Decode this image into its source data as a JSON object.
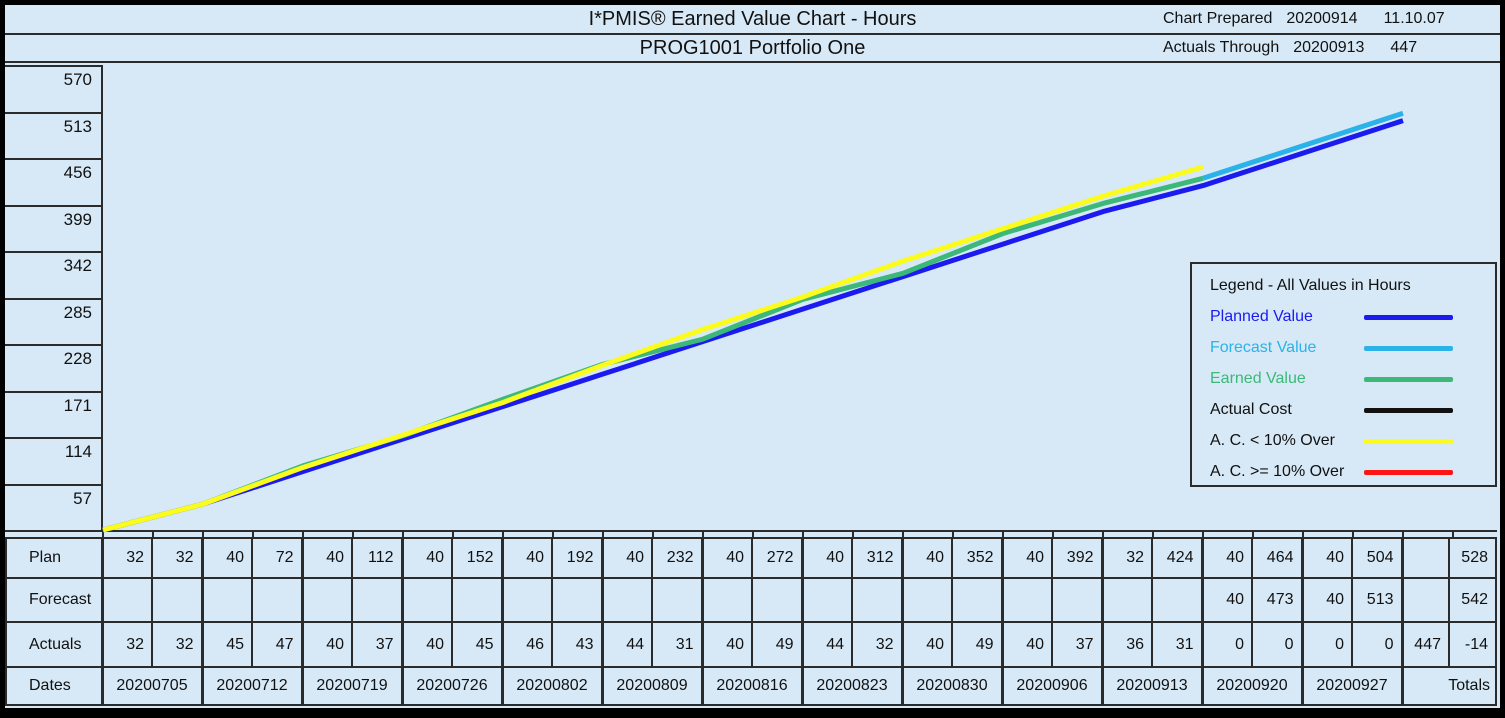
{
  "header": {
    "title": "I*PMIS® Earned Value Chart - Hours",
    "prepared_label": "Chart Prepared",
    "prepared_date": "20200914",
    "prepared_time": "11.10.07",
    "subtitle": "PROG1001 Portfolio One",
    "actuals_label": "Actuals Through",
    "actuals_date": "20200913",
    "actuals_value": "447"
  },
  "y_axis_labels": [
    "570",
    "513",
    "456",
    "399",
    "342",
    "285",
    "228",
    "171",
    "114",
    "57"
  ],
  "legend": {
    "title": "Legend - All Values in Hours",
    "items": [
      {
        "name": "planned-value",
        "label": "Planned Value",
        "label_color": "#1b1bf0",
        "line_color": "#1b1bf0"
      },
      {
        "name": "forecast-value",
        "label": "Forecast Value",
        "label_color": "#2ab2e9",
        "line_color": "#2ab2e9"
      },
      {
        "name": "earned-value",
        "label": "Earned Value",
        "label_color": "#3cb878",
        "line_color": "#3cb878"
      },
      {
        "name": "actual-cost",
        "label": "Actual Cost",
        "label_color": "#111111",
        "line_color": "#111111"
      },
      {
        "name": "ac-under-10",
        "label": "A. C. < 10% Over",
        "label_color": "#111111",
        "line_color": "#fbfb1d"
      },
      {
        "name": "ac-over-10",
        "label": "A. C. >= 10% Over",
        "label_color": "#111111",
        "line_color": "#fe1414"
      }
    ]
  },
  "table": {
    "row_labels": {
      "plan": "Plan",
      "forecast": "Forecast",
      "actuals": "Actuals",
      "dates": "Dates"
    },
    "dates": [
      "20200705",
      "20200712",
      "20200719",
      "20200726",
      "20200802",
      "20200809",
      "20200816",
      "20200823",
      "20200830",
      "20200906",
      "20200913",
      "20200920",
      "20200927"
    ],
    "totals_label": "Totals",
    "plan_cells": [
      [
        "32",
        "32"
      ],
      [
        "40",
        "72"
      ],
      [
        "40",
        "112"
      ],
      [
        "40",
        "152"
      ],
      [
        "40",
        "192"
      ],
      [
        "40",
        "232"
      ],
      [
        "40",
        "272"
      ],
      [
        "40",
        "312"
      ],
      [
        "40",
        "352"
      ],
      [
        "40",
        "392"
      ],
      [
        "32",
        "424"
      ],
      [
        "40",
        "464"
      ],
      [
        "40",
        "504"
      ]
    ],
    "plan_totals": [
      "",
      "528"
    ],
    "forecast_cells": [
      [
        "",
        ""
      ],
      [
        "",
        ""
      ],
      [
        "",
        ""
      ],
      [
        "",
        ""
      ],
      [
        "",
        ""
      ],
      [
        "",
        ""
      ],
      [
        "",
        ""
      ],
      [
        "",
        ""
      ],
      [
        "",
        ""
      ],
      [
        "",
        ""
      ],
      [
        "",
        ""
      ],
      [
        "40",
        "473"
      ],
      [
        "40",
        "513"
      ]
    ],
    "forecast_totals": [
      "",
      "542"
    ],
    "actuals_cells": [
      [
        "32",
        "32"
      ],
      [
        "45",
        "47"
      ],
      [
        "40",
        "37"
      ],
      [
        "40",
        "45"
      ],
      [
        "46",
        "43"
      ],
      [
        "44",
        "31"
      ],
      [
        "40",
        "49"
      ],
      [
        "44",
        "32"
      ],
      [
        "40",
        "49"
      ],
      [
        "40",
        "37"
      ],
      [
        "36",
        "31"
      ],
      [
        "0",
        "0"
      ],
      [
        "0",
        "0"
      ]
    ],
    "actuals_totals": [
      "447",
      "-14"
    ]
  },
  "chart_data": {
    "type": "line",
    "title": "I*PMIS® Earned Value Chart - Hours",
    "subtitle": "PROG1001 Portfolio One",
    "ylabel": "Hours",
    "ylim": [
      0,
      570
    ],
    "y_ticks": [
      57,
      114,
      171,
      228,
      285,
      342,
      399,
      456,
      513,
      570
    ],
    "x_categories": [
      "start",
      "20200705",
      "20200712",
      "20200719",
      "20200726",
      "20200802",
      "20200809",
      "20200816",
      "20200823",
      "20200830",
      "20200906",
      "20200913",
      "20200920",
      "20200927"
    ],
    "grid": false,
    "legend_position": "middle-right box",
    "series": [
      {
        "name": "Planned Value",
        "color": "#1b1bf0",
        "start_index": 0,
        "values": [
          0,
          32,
          72,
          112,
          152,
          192,
          232,
          272,
          312,
          352,
          392,
          424,
          464,
          504
        ]
      },
      {
        "name": "Forecast Value",
        "color": "#2ab2e9",
        "start_index": 11,
        "values": [
          433,
          473,
          513
        ]
      },
      {
        "name": "Earned Value",
        "color": "#3cb878",
        "start_index": 0,
        "values": [
          0,
          32,
          79,
          116,
          161,
          204,
          235,
          284,
          316,
          365,
          402,
          433
        ]
      },
      {
        "name": "Actual Cost (A. C. < 10% Over, drawn yellow)",
        "color": "#fbfb1d",
        "start_index": 0,
        "values": [
          0,
          32,
          77,
          117,
          157,
          203,
          247,
          287,
          331,
          371,
          411,
          447
        ]
      }
    ]
  }
}
